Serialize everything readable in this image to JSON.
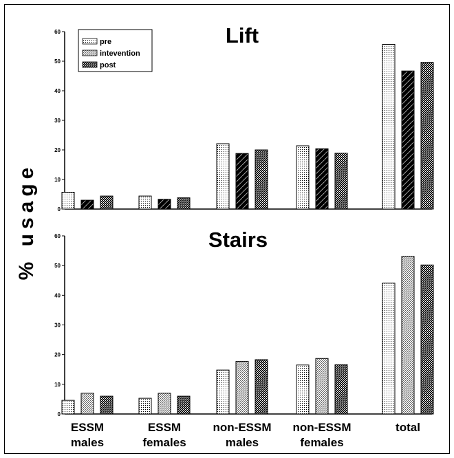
{
  "chart_data": [
    {
      "type": "bar",
      "title": "Lift",
      "ylabel": "% usage",
      "ylim": [
        0,
        60
      ],
      "yticks": [
        0,
        10,
        20,
        30,
        40,
        50,
        60
      ],
      "categories": [
        "ESSM males",
        "ESSM females",
        "non-ESSM males",
        "non-ESSM females",
        "total"
      ],
      "series": [
        {
          "name": "pre",
          "values": [
            5.7,
            4.4,
            22.1,
            21.4,
            55.7
          ]
        },
        {
          "name": "intevention",
          "values": [
            3.0,
            3.3,
            18.8,
            20.4,
            46.7
          ]
        },
        {
          "name": "post",
          "values": [
            4.4,
            3.8,
            20.0,
            18.9,
            49.6
          ]
        }
      ],
      "legend": "top-left",
      "grid": false
    },
    {
      "type": "bar",
      "title": "Stairs",
      "ylim": [
        0,
        60
      ],
      "yticks": [
        0,
        10,
        20,
        30,
        40,
        50,
        60
      ],
      "categories": [
        "ESSM males",
        "ESSM females",
        "non-ESSM males",
        "non-ESSM females",
        "total"
      ],
      "series": [
        {
          "name": "pre",
          "values": [
            4.6,
            5.3,
            14.8,
            16.5,
            44.1
          ]
        },
        {
          "name": "intevention",
          "values": [
            7.0,
            7.0,
            17.7,
            18.7,
            53.1
          ]
        },
        {
          "name": "post",
          "values": [
            6.0,
            6.0,
            18.3,
            16.6,
            50.2
          ]
        }
      ],
      "grid": false
    }
  ],
  "category_labels": [
    {
      "line1": "ESSM",
      "line2": "males"
    },
    {
      "line1": "ESSM",
      "line2": "females"
    },
    {
      "line1": "non-ESSM",
      "line2": "males"
    },
    {
      "line1": "non-ESSM",
      "line2": "females"
    },
    {
      "line1": "total",
      "line2": ""
    }
  ]
}
